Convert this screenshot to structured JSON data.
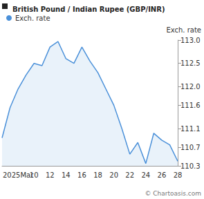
{
  "chart_data": {
    "type": "line",
    "title": "British Pound / Indian Rupee (GBP/INR)",
    "ylabel": "Exch. rate",
    "annotations": [
      "© Chartoasis.com"
    ],
    "categories": [
      null,
      null,
      "2025Mar",
      null,
      "10",
      null,
      "12",
      null,
      "14",
      null,
      "16",
      null,
      "18",
      null,
      "20",
      null,
      "22",
      null,
      "24",
      null,
      "26",
      null,
      "28"
    ],
    "series": [
      {
        "name": "Exch. rate",
        "color": "#4a90d9",
        "values": [
          110.9,
          111.55,
          111.95,
          112.25,
          112.5,
          112.45,
          112.85,
          112.97,
          112.6,
          112.5,
          112.85,
          112.55,
          112.3,
          111.95,
          111.6,
          111.1,
          110.55,
          110.8,
          110.35,
          111.0,
          110.85,
          110.75,
          110.4
        ]
      }
    ],
    "ylim": [
      110.3,
      113.0
    ],
    "yticks": [
      110.3,
      110.7,
      111.1,
      111.6,
      {
        "value": 112,
        "label": "112.0"
      },
      112.5,
      {
        "value": 113,
        "label": "113.0"
      }
    ],
    "grid": false,
    "legend": "top-left"
  }
}
